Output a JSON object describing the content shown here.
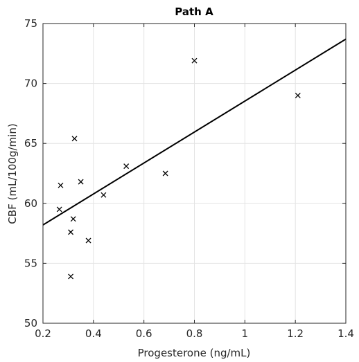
{
  "chart_data": {
    "type": "scatter",
    "title": "Path A",
    "xlabel": "Progesterone (ng/mL)",
    "ylabel": "CBF (mL/100g/min)",
    "xlim": [
      0.2,
      1.4
    ],
    "ylim": [
      50,
      75
    ],
    "xticks": [
      0.2,
      0.4,
      0.6,
      0.8,
      1.0,
      1.2,
      1.4
    ],
    "xtick_labels": [
      "0.2",
      "0.4",
      "0.6",
      "0.8",
      "1",
      "1.2",
      "1.4"
    ],
    "yticks": [
      50,
      55,
      60,
      65,
      70,
      75
    ],
    "ytick_labels": [
      "50",
      "55",
      "60",
      "65",
      "70",
      "75"
    ],
    "grid": true,
    "marker": "x",
    "points": [
      {
        "x": 0.8,
        "y": 71.9
      },
      {
        "x": 1.21,
        "y": 69.0
      },
      {
        "x": 0.325,
        "y": 65.4
      },
      {
        "x": 0.53,
        "y": 63.1
      },
      {
        "x": 0.685,
        "y": 62.5
      },
      {
        "x": 0.35,
        "y": 61.8
      },
      {
        "x": 0.27,
        "y": 61.5
      },
      {
        "x": 0.44,
        "y": 60.7
      },
      {
        "x": 0.265,
        "y": 59.5
      },
      {
        "x": 0.32,
        "y": 58.7
      },
      {
        "x": 0.31,
        "y": 57.6
      },
      {
        "x": 0.38,
        "y": 56.9
      },
      {
        "x": 0.31,
        "y": 53.9
      }
    ],
    "fit_line": {
      "x": [
        0.2,
        1.4
      ],
      "y": [
        58.2,
        73.7
      ]
    },
    "colors": {
      "marker": "#000000",
      "line": "#000000",
      "grid": "#e3e3e3",
      "axis": "#262626"
    }
  }
}
